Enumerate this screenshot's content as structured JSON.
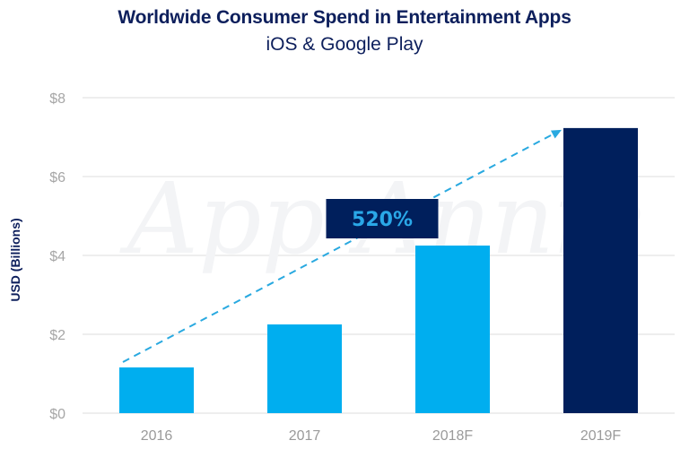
{
  "chart_data": {
    "type": "bar",
    "title": "Worldwide Consumer Spend in Entertainment Apps",
    "subtitle": "iOS & Google Play",
    "xlabel": "",
    "ylabel": "USD (Billions)",
    "categories": [
      "2016",
      "2017",
      "2018F",
      "2019F"
    ],
    "values": [
      1.16,
      2.25,
      4.25,
      7.23
    ],
    "bar_colors": [
      "#00aeef",
      "#00aeef",
      "#00aeef",
      "#001f5c"
    ],
    "ylim": [
      0,
      8
    ],
    "yticks": [
      0,
      2,
      4,
      6,
      8
    ],
    "ytick_labels": [
      "$0",
      "$2",
      "$4",
      "$6",
      "$8"
    ],
    "grid": true,
    "annotation": {
      "text": "520%",
      "type": "dashed-arrow",
      "from_category": "2016",
      "to_category": "2019F",
      "box_color": "#001f5c",
      "text_color": "#2aa8e8",
      "line_color": "#29a9e0"
    },
    "watermark": "App Annie"
  }
}
